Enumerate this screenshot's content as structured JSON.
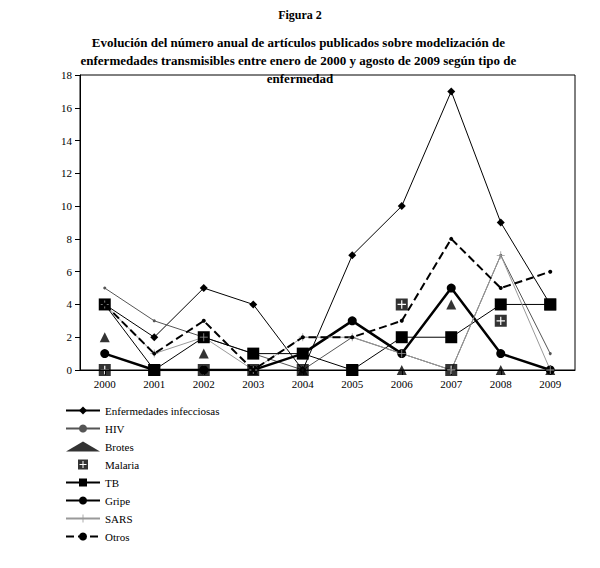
{
  "chart_data": {
    "type": "line",
    "title": "Figura 2",
    "subtitle": "Evolución del número anual de artículos publicados sobre modelización de enfermedades transmisibles entre enero de 2000 y agosto de 2009 según tipo de enfermedad",
    "categories": [
      "2000",
      "2001",
      "2002",
      "2003",
      "2004",
      "2005",
      "2006",
      "2007",
      "2008",
      "2009"
    ],
    "ylim": [
      0,
      18
    ],
    "yticks": [
      0,
      2,
      4,
      6,
      8,
      10,
      12,
      14,
      16,
      18
    ],
    "grid": false,
    "legend": "bottom-left",
    "series": [
      {
        "name": "Enfermedades infecciosas",
        "color": "#000000",
        "marker": "diamond",
        "line_style": "solid",
        "values": [
          4,
          2,
          5,
          4,
          0,
          7,
          10,
          17,
          9,
          4
        ]
      },
      {
        "name": "HIV",
        "color": "#555555",
        "marker": "point",
        "line_style": "solid",
        "values": [
          5,
          3,
          2,
          1,
          0,
          2,
          1,
          0,
          7,
          1
        ]
      },
      {
        "name": "Brotes",
        "color": "#000000",
        "marker": "triangle",
        "type": "scatter",
        "values": [
          2,
          0,
          1,
          0,
          0,
          0,
          0,
          4,
          0,
          0
        ]
      },
      {
        "name": "Malaria",
        "color": "#000000",
        "marker": "square-plus",
        "type": "scatter",
        "values": [
          0,
          0,
          0,
          0,
          0,
          0,
          4,
          0,
          3,
          4
        ]
      },
      {
        "name": "TB",
        "color": "#000000",
        "marker": "square",
        "line_style": "solid",
        "values": [
          4,
          0,
          2,
          1,
          1,
          0,
          2,
          2,
          4,
          4
        ]
      },
      {
        "name": "Gripe",
        "color": "#000000",
        "marker": "circle",
        "line_style": "thick",
        "values": [
          1,
          0,
          0,
          0,
          1,
          3,
          1,
          5,
          1,
          0
        ]
      },
      {
        "name": "SARS",
        "color": "#999999",
        "marker": "plus",
        "line_style": "solid",
        "values": [
          4,
          1,
          2,
          0,
          2,
          2,
          1,
          0,
          7,
          0
        ]
      },
      {
        "name": "Otros",
        "color": "#000000",
        "marker": "dot",
        "line_style": "dashed",
        "values": [
          4,
          1,
          3,
          0,
          2,
          2,
          3,
          8,
          5,
          6
        ]
      }
    ]
  }
}
